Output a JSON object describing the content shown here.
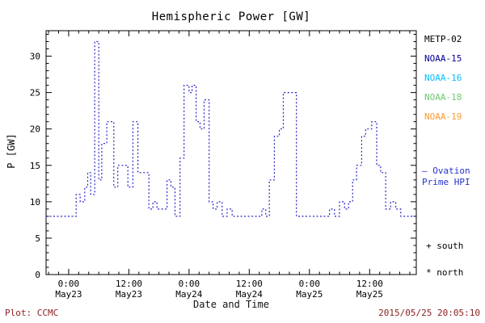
{
  "title": "Hemispheric Power [GW]",
  "ylabel": "P [GW]",
  "xlabel": "Date and Time",
  "footer": {
    "left": "Plot: CCMC",
    "right": "2015/05/25 20:05:10"
  },
  "colors": {
    "line": "#2424c8",
    "note": "#2233cc",
    "footer": "#8b2020",
    "axis": "#000000"
  },
  "legend": {
    "satellites": [
      {
        "label": "METP-02",
        "color": "#000000"
      },
      {
        "label": "NOAA-15",
        "color": "#000096"
      },
      {
        "label": "NOAA-16",
        "color": "#00bfff"
      },
      {
        "label": "NOAA-18",
        "color": "#6fc96f"
      },
      {
        "label": "NOAA-19",
        "color": "#ff9933"
      }
    ],
    "note_line1": "— Ovation",
    "note_line2": "Prime HPI",
    "south_label": "+ south",
    "north_label": "* north"
  },
  "chart_data": {
    "type": "line",
    "line_style": "dotted-step",
    "line_color": "#2424c8",
    "title": "Hemispheric Power [GW]",
    "xlabel": "Date and Time",
    "ylabel": "P [GW]",
    "ylim": [
      0,
      33.5
    ],
    "yticks": [
      0,
      5,
      10,
      15,
      20,
      25,
      30
    ],
    "x_note": "hours relative to 0:00 May23 2015",
    "x_hours_range": [
      -4.5,
      69.3
    ],
    "xticks": [
      {
        "hour": 0,
        "line1": "0:00",
        "line2": "May23"
      },
      {
        "hour": 12,
        "line1": "12:00",
        "line2": "May23"
      },
      {
        "hour": 24,
        "line1": "0:00",
        "line2": "May24"
      },
      {
        "hour": 36,
        "line1": "12:00",
        "line2": "May24"
      },
      {
        "hour": 48,
        "line1": "0:00",
        "line2": "May25"
      },
      {
        "hour": 60,
        "line1": "12:00",
        "line2": "May25"
      }
    ],
    "points": [
      [
        -4.5,
        8
      ],
      [
        1.5,
        11
      ],
      [
        2.3,
        10
      ],
      [
        3.2,
        12
      ],
      [
        3.8,
        14
      ],
      [
        4.4,
        11
      ],
      [
        5.2,
        32
      ],
      [
        6.0,
        13
      ],
      [
        6.6,
        18
      ],
      [
        7.6,
        21
      ],
      [
        9.0,
        12
      ],
      [
        9.8,
        15
      ],
      [
        11.0,
        15
      ],
      [
        11.8,
        12
      ],
      [
        12.8,
        21
      ],
      [
        13.8,
        14
      ],
      [
        15.0,
        14
      ],
      [
        16.0,
        9
      ],
      [
        16.8,
        10
      ],
      [
        17.6,
        9
      ],
      [
        18.8,
        9
      ],
      [
        19.6,
        13
      ],
      [
        20.4,
        12
      ],
      [
        21.2,
        8
      ],
      [
        22.2,
        16
      ],
      [
        23.0,
        26
      ],
      [
        24.0,
        25
      ],
      [
        24.6,
        26
      ],
      [
        25.4,
        21
      ],
      [
        26.2,
        20
      ],
      [
        27.0,
        24
      ],
      [
        28.0,
        10
      ],
      [
        28.8,
        9
      ],
      [
        29.6,
        10
      ],
      [
        30.6,
        8
      ],
      [
        31.6,
        9
      ],
      [
        32.6,
        8
      ],
      [
        34.5,
        8
      ],
      [
        37.0,
        8
      ],
      [
        38.5,
        9
      ],
      [
        39.3,
        8
      ],
      [
        40.0,
        13
      ],
      [
        41.0,
        19
      ],
      [
        42.0,
        20
      ],
      [
        42.8,
        25
      ],
      [
        44.6,
        25
      ],
      [
        45.4,
        8
      ],
      [
        49.0,
        8
      ],
      [
        52.0,
        9
      ],
      [
        53.0,
        8
      ],
      [
        54.0,
        10
      ],
      [
        55.0,
        9
      ],
      [
        55.8,
        10
      ],
      [
        56.6,
        13
      ],
      [
        57.4,
        15
      ],
      [
        58.4,
        19
      ],
      [
        59.2,
        20
      ],
      [
        60.4,
        21
      ],
      [
        61.4,
        15
      ],
      [
        62.2,
        14
      ],
      [
        63.2,
        9
      ],
      [
        64.2,
        10
      ],
      [
        65.2,
        9
      ],
      [
        66.2,
        8
      ],
      [
        69.2,
        8
      ]
    ]
  }
}
